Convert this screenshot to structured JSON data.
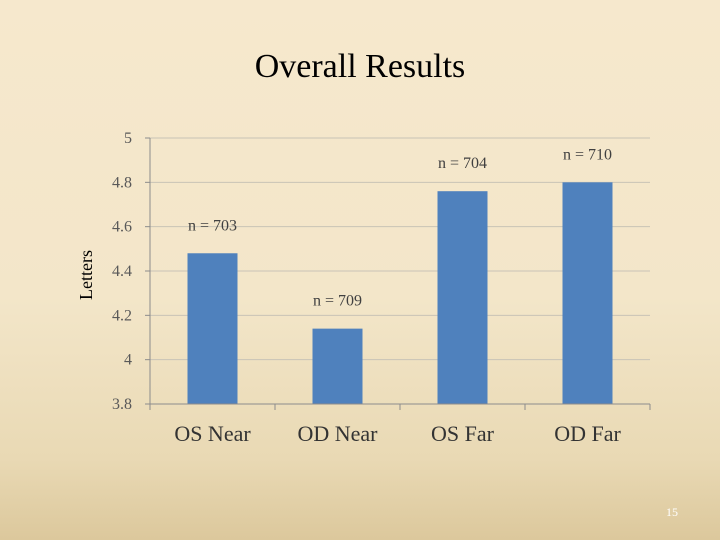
{
  "slide": {
    "page_number": "15"
  },
  "chart_data": {
    "type": "bar",
    "title": "Overall Results",
    "xlabel": "",
    "ylabel": "Letters",
    "categories": [
      "OS Near",
      "OD Near",
      "OS Far",
      "OD Far"
    ],
    "values": [
      4.48,
      4.14,
      4.76,
      4.8
    ],
    "data_labels": [
      "n = 703",
      "n = 709",
      "n = 704",
      "n = 710"
    ],
    "ylim": [
      3.8,
      5
    ],
    "yticks": [
      3.8,
      4,
      4.2,
      4.4,
      4.6,
      4.8,
      5
    ],
    "grid": true,
    "bar_color": "#4f81bd"
  }
}
